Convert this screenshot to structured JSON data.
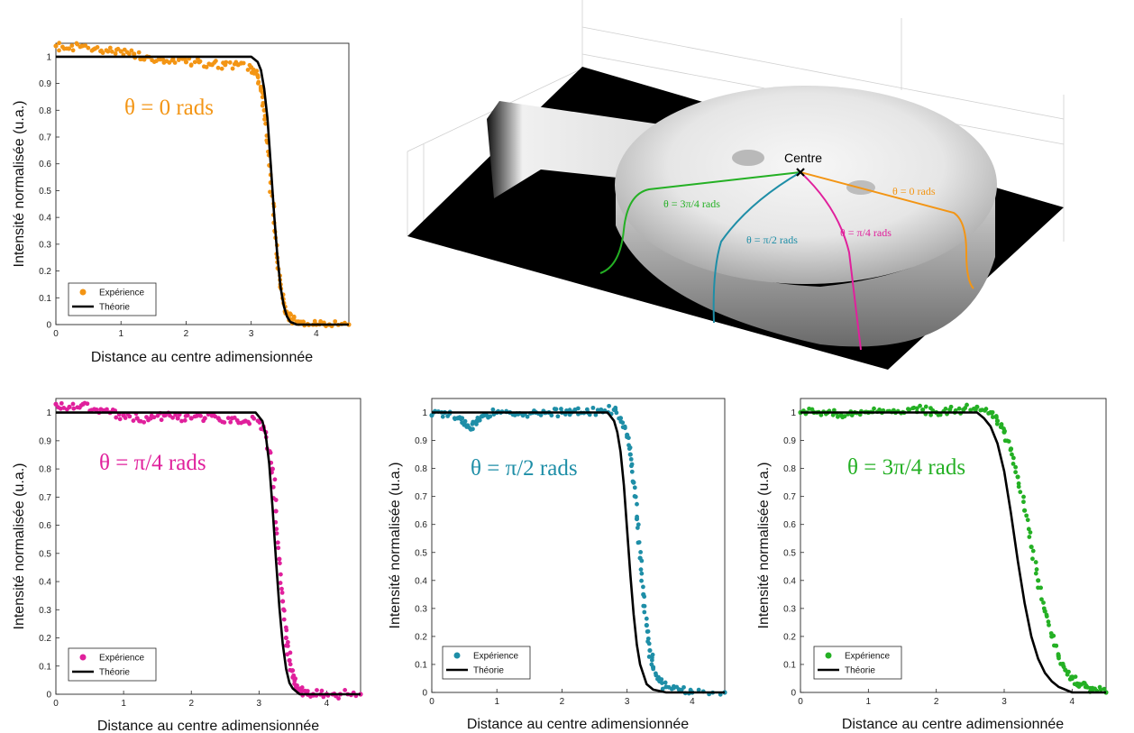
{
  "colors": {
    "orange": "#f39514",
    "magenta": "#e0209c",
    "teal": "#1e8ea7",
    "green": "#24b024",
    "theory": "#000000"
  },
  "three_d": {
    "centre_label": "Centre",
    "paths": [
      {
        "label": "θ = 3π/4 rads",
        "color": "#24b024"
      },
      {
        "label": "θ = π/2 rads",
        "color": "#1e8ea7"
      },
      {
        "label": "θ = π/4 rads",
        "color": "#e0209c"
      },
      {
        "label": "θ = 0 rads",
        "color": "#f39514"
      }
    ]
  },
  "chart_data": [
    {
      "type": "scatter",
      "annotation": "θ = 0 rads",
      "xlabel": "Distance au centre adimensionnée",
      "ylabel": "Intensité normalisée (u.a.)",
      "xlim": [
        0,
        4.5
      ],
      "ylim": [
        0,
        1.05
      ],
      "xticks": [
        "0",
        "1",
        "2",
        "3",
        "4"
      ],
      "yticks": [
        "0",
        "0.1",
        "0.2",
        "0.3",
        "0.4",
        "0.5",
        "0.6",
        "0.7",
        "0.8",
        "0.9",
        "1"
      ],
      "legend": {
        "placement": "bottom-left",
        "entries": [
          "Expérience",
          "Théorie"
        ]
      },
      "series": [
        {
          "name": "Expérience",
          "kind": "points",
          "color": "#f39514",
          "x": [
            0,
            0.2,
            0.4,
            0.6,
            0.8,
            1.0,
            1.2,
            1.4,
            1.6,
            1.8,
            2.0,
            2.2,
            2.4,
            2.6,
            2.8,
            3.0,
            3.1,
            3.15,
            3.2,
            3.25,
            3.3,
            3.35,
            3.4,
            3.45,
            3.5,
            3.55,
            3.6,
            3.7,
            3.8,
            4.0,
            4.2,
            4.5
          ],
          "y": [
            1.04,
            1.03,
            1.04,
            1.03,
            1.02,
            1.02,
            1.01,
            1.0,
            0.99,
            0.99,
            0.98,
            0.98,
            0.97,
            0.97,
            0.97,
            0.96,
            0.93,
            0.88,
            0.8,
            0.68,
            0.53,
            0.38,
            0.25,
            0.15,
            0.08,
            0.04,
            0.02,
            0.01,
            0.01,
            0.0,
            0.0,
            0.0
          ]
        },
        {
          "name": "Théorie",
          "kind": "line",
          "color": "#000000",
          "x": [
            0,
            3.0,
            3.1,
            3.15,
            3.2,
            3.25,
            3.3,
            3.35,
            3.4,
            3.45,
            3.5,
            3.55,
            3.6,
            3.7,
            4.5
          ],
          "y": [
            1.0,
            1.0,
            0.98,
            0.95,
            0.88,
            0.77,
            0.6,
            0.42,
            0.26,
            0.14,
            0.07,
            0.03,
            0.01,
            0.0,
            0.0
          ]
        }
      ]
    },
    {
      "type": "scatter",
      "annotation": "θ = π/4 rads",
      "xlabel": "Distance au centre adimensionnée",
      "ylabel": "Intensité normalisée (u.a.)",
      "xlim": [
        0,
        4.5
      ],
      "ylim": [
        0,
        1.05
      ],
      "xticks": [
        "0",
        "1",
        "2",
        "3",
        "4"
      ],
      "yticks": [
        "0",
        "0.1",
        "0.2",
        "0.3",
        "0.4",
        "0.5",
        "0.6",
        "0.7",
        "0.8",
        "0.9",
        "1"
      ],
      "legend": {
        "placement": "bottom-left",
        "entries": [
          "Expérience",
          "Théorie"
        ]
      },
      "series": [
        {
          "name": "Expérience",
          "kind": "points",
          "color": "#e0209c",
          "x": [
            0,
            0.2,
            0.4,
            0.6,
            0.8,
            1.0,
            1.2,
            1.4,
            1.6,
            1.8,
            2.0,
            2.2,
            2.4,
            2.6,
            2.8,
            3.0,
            3.1,
            3.2,
            3.25,
            3.3,
            3.35,
            3.4,
            3.45,
            3.5,
            3.55,
            3.6,
            3.7,
            3.8,
            4.0,
            4.2,
            4.5
          ],
          "y": [
            1.03,
            1.02,
            1.03,
            1.01,
            1.0,
            0.99,
            0.98,
            0.98,
            0.99,
            0.98,
            0.98,
            0.98,
            0.98,
            0.98,
            0.97,
            0.97,
            0.93,
            0.8,
            0.65,
            0.48,
            0.33,
            0.2,
            0.12,
            0.06,
            0.03,
            0.01,
            0.01,
            0.0,
            0.0,
            0.0,
            0.0
          ]
        },
        {
          "name": "Théorie",
          "kind": "line",
          "color": "#000000",
          "x": [
            0,
            2.95,
            3.05,
            3.1,
            3.15,
            3.2,
            3.25,
            3.3,
            3.35,
            3.4,
            3.45,
            3.5,
            3.6,
            3.7,
            4.5
          ],
          "y": [
            1.0,
            1.0,
            0.97,
            0.92,
            0.82,
            0.66,
            0.48,
            0.31,
            0.18,
            0.09,
            0.04,
            0.02,
            0.0,
            0.0,
            0.0
          ]
        }
      ]
    },
    {
      "type": "scatter",
      "annotation": "θ = π/2 rads",
      "xlabel": "Distance au centre adimensionnée",
      "ylabel": "Intensité normalisée (u.a.)",
      "xlim": [
        0,
        4.5
      ],
      "ylim": [
        0,
        1.05
      ],
      "xticks": [
        "0",
        "1",
        "2",
        "3",
        "4"
      ],
      "yticks": [
        "0",
        "0.1",
        "0.2",
        "0.3",
        "0.4",
        "0.5",
        "0.6",
        "0.7",
        "0.8",
        "0.9",
        "1"
      ],
      "legend": {
        "placement": "bottom-left",
        "entries": [
          "Expérience",
          "Théorie"
        ]
      },
      "series": [
        {
          "name": "Expérience",
          "kind": "points",
          "color": "#1e8ea7",
          "x": [
            0,
            0.2,
            0.4,
            0.5,
            0.6,
            0.7,
            0.8,
            1.0,
            1.2,
            1.4,
            1.6,
            1.8,
            2.0,
            2.2,
            2.4,
            2.6,
            2.8,
            2.9,
            3.0,
            3.05,
            3.1,
            3.15,
            3.2,
            3.25,
            3.3,
            3.35,
            3.4,
            3.5,
            3.6,
            3.8,
            4.0,
            4.5
          ],
          "y": [
            0.99,
            1.0,
            0.98,
            0.96,
            0.94,
            0.97,
            0.99,
            1.0,
            1.0,
            0.99,
            1.0,
            1.0,
            1.0,
            1.01,
            1.0,
            1.01,
            1.01,
            0.98,
            0.92,
            0.85,
            0.75,
            0.62,
            0.48,
            0.35,
            0.24,
            0.15,
            0.09,
            0.04,
            0.02,
            0.01,
            0.0,
            0.0
          ]
        },
        {
          "name": "Théorie",
          "kind": "line",
          "color": "#000000",
          "x": [
            0,
            2.7,
            2.8,
            2.85,
            2.9,
            2.95,
            3.0,
            3.05,
            3.1,
            3.15,
            3.2,
            3.3,
            3.4,
            3.6,
            4.5
          ],
          "y": [
            1.0,
            1.0,
            0.97,
            0.93,
            0.86,
            0.74,
            0.58,
            0.42,
            0.28,
            0.17,
            0.1,
            0.03,
            0.01,
            0.0,
            0.0
          ]
        }
      ]
    },
    {
      "type": "scatter",
      "annotation": "θ = 3π/4 rads",
      "xlabel": "Distance au centre adimensionnée",
      "ylabel": "Intensité normalisée (u.a.)",
      "xlim": [
        0,
        4.5
      ],
      "ylim": [
        0,
        1.05
      ],
      "xticks": [
        "0",
        "1",
        "2",
        "3",
        "4"
      ],
      "yticks": [
        "0",
        "0.1",
        "0.2",
        "0.3",
        "0.4",
        "0.5",
        "0.6",
        "0.7",
        "0.8",
        "0.9",
        "1"
      ],
      "legend": {
        "placement": "bottom-left",
        "entries": [
          "Expérience",
          "Théorie"
        ]
      },
      "series": [
        {
          "name": "Expérience",
          "kind": "points",
          "color": "#24b024",
          "x": [
            0,
            0.2,
            0.4,
            0.6,
            0.8,
            1.0,
            1.2,
            1.4,
            1.6,
            1.8,
            2.0,
            2.2,
            2.4,
            2.6,
            2.8,
            2.9,
            3.0,
            3.1,
            3.2,
            3.3,
            3.4,
            3.5,
            3.6,
            3.7,
            3.8,
            3.9,
            4.0,
            4.1,
            4.2,
            4.3,
            4.5
          ],
          "y": [
            1.0,
            1.0,
            1.0,
            0.99,
            1.0,
            1.0,
            1.0,
            1.0,
            1.01,
            1.01,
            1.0,
            1.01,
            1.01,
            1.02,
            1.0,
            0.97,
            0.93,
            0.87,
            0.77,
            0.65,
            0.52,
            0.4,
            0.29,
            0.2,
            0.13,
            0.08,
            0.05,
            0.03,
            0.02,
            0.01,
            0.0
          ]
        },
        {
          "name": "Théorie",
          "kind": "line",
          "color": "#000000",
          "x": [
            0,
            2.6,
            2.7,
            2.8,
            2.9,
            3.0,
            3.1,
            3.2,
            3.3,
            3.4,
            3.5,
            3.6,
            3.7,
            3.8,
            4.0,
            4.5
          ],
          "y": [
            1.0,
            1.0,
            0.98,
            0.95,
            0.89,
            0.79,
            0.64,
            0.47,
            0.32,
            0.2,
            0.12,
            0.07,
            0.04,
            0.02,
            0.0,
            0.0
          ]
        }
      ]
    }
  ]
}
